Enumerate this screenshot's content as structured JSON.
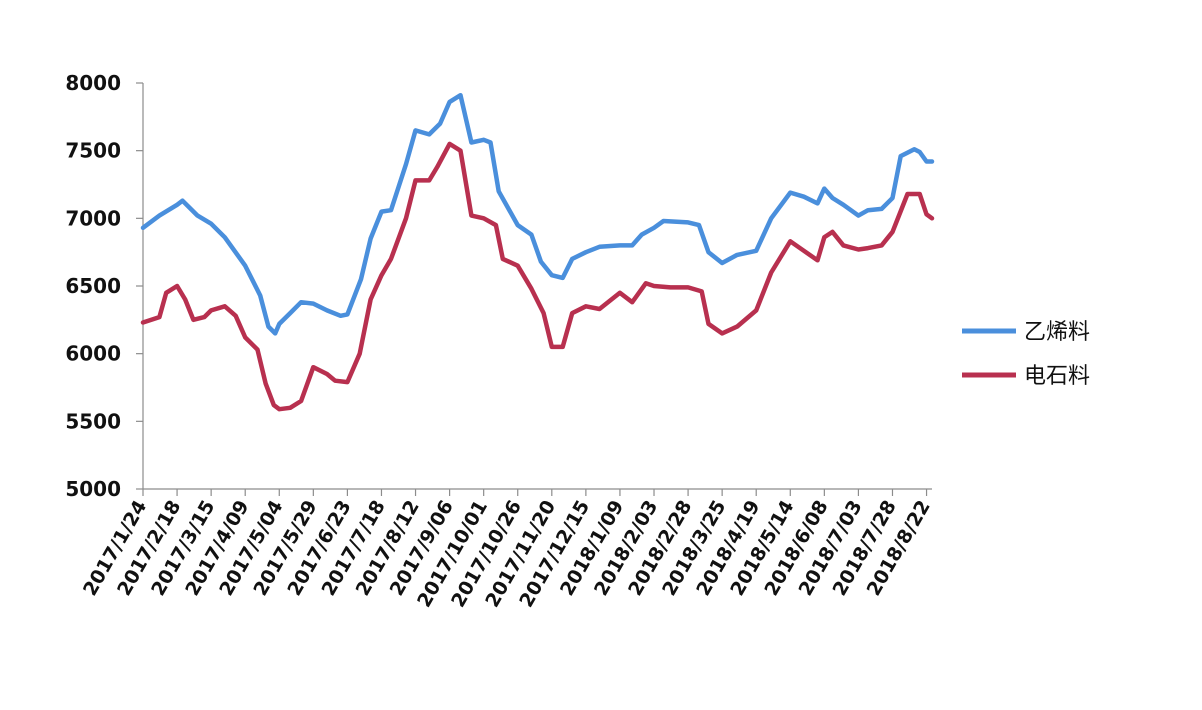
{
  "chart_data": {
    "type": "line",
    "title": "",
    "xlabel": "",
    "ylabel": "",
    "ylim": [
      5000,
      8000
    ],
    "yticks": [
      5000,
      5500,
      6000,
      6500,
      7000,
      7500,
      8000
    ],
    "x_tick_labels": [
      "2017/1/24",
      "2017/2/18",
      "2017/3/15",
      "2017/4/09",
      "2017/5/04",
      "2017/5/29",
      "2017/6/23",
      "2017/7/18",
      "2017/8/12",
      "2017/9/06",
      "2017/10/01",
      "2017/10/26",
      "2017/11/20",
      "2017/12/15",
      "2018/1/09",
      "2018/2/03",
      "2018/2/28",
      "2018/3/25",
      "2018/4/19",
      "2018/5/14",
      "2018/6/08",
      "2018/7/03",
      "2018/7/28",
      "2018/8/22"
    ],
    "grid": false,
    "legend_position": "right",
    "series": [
      {
        "name": "乙烯料",
        "color": "#4a8fdc",
        "points": [
          [
            "2017/1/24",
            6930
          ],
          [
            "2017/2/05",
            7020
          ],
          [
            "2017/2/18",
            7100
          ],
          [
            "2017/2/22",
            7130
          ],
          [
            "2017/3/05",
            7020
          ],
          [
            "2017/3/15",
            6960
          ],
          [
            "2017/3/25",
            6860
          ],
          [
            "2017/4/09",
            6650
          ],
          [
            "2017/4/20",
            6430
          ],
          [
            "2017/4/26",
            6200
          ],
          [
            "2017/5/01",
            6150
          ],
          [
            "2017/5/04",
            6220
          ],
          [
            "2017/5/12",
            6300
          ],
          [
            "2017/5/20",
            6380
          ],
          [
            "2017/5/29",
            6370
          ],
          [
            "2017/6/08",
            6320
          ],
          [
            "2017/6/18",
            6280
          ],
          [
            "2017/6/23",
            6290
          ],
          [
            "2017/7/03",
            6550
          ],
          [
            "2017/7/10",
            6850
          ],
          [
            "2017/7/18",
            7050
          ],
          [
            "2017/7/25",
            7060
          ],
          [
            "2017/8/05",
            7400
          ],
          [
            "2017/8/12",
            7650
          ],
          [
            "2017/8/22",
            7620
          ],
          [
            "2017/8/30",
            7700
          ],
          [
            "2017/9/06",
            7860
          ],
          [
            "2017/9/14",
            7910
          ],
          [
            "2017/9/22",
            7560
          ],
          [
            "2017/10/01",
            7580
          ],
          [
            "2017/10/06",
            7560
          ],
          [
            "2017/10/12",
            7200
          ],
          [
            "2017/10/26",
            6950
          ],
          [
            "2017/11/05",
            6880
          ],
          [
            "2017/11/12",
            6680
          ],
          [
            "2017/11/20",
            6580
          ],
          [
            "2017/11/28",
            6560
          ],
          [
            "2017/12/05",
            6700
          ],
          [
            "2017/12/15",
            6750
          ],
          [
            "2017/12/25",
            6790
          ],
          [
            "2018/1/09",
            6800
          ],
          [
            "2018/1/18",
            6800
          ],
          [
            "2018/1/25",
            6880
          ],
          [
            "2018/2/03",
            6930
          ],
          [
            "2018/2/10",
            6980
          ],
          [
            "2018/2/28",
            6970
          ],
          [
            "2018/3/08",
            6950
          ],
          [
            "2018/3/15",
            6750
          ],
          [
            "2018/3/25",
            6670
          ],
          [
            "2018/4/05",
            6730
          ],
          [
            "2018/4/19",
            6760
          ],
          [
            "2018/4/30",
            7000
          ],
          [
            "2018/5/14",
            7190
          ],
          [
            "2018/5/24",
            7160
          ],
          [
            "2018/6/03",
            7110
          ],
          [
            "2018/6/08",
            7220
          ],
          [
            "2018/6/14",
            7150
          ],
          [
            "2018/6/22",
            7100
          ],
          [
            "2018/7/03",
            7020
          ],
          [
            "2018/7/10",
            7060
          ],
          [
            "2018/7/20",
            7070
          ],
          [
            "2018/7/28",
            7150
          ],
          [
            "2018/8/03",
            7460
          ],
          [
            "2018/8/13",
            7510
          ],
          [
            "2018/8/17",
            7490
          ],
          [
            "2018/8/22",
            7420
          ],
          [
            "2018/8/26",
            7420
          ]
        ]
      },
      {
        "name": "电石料",
        "color": "#b8304f",
        "points": [
          [
            "2017/1/24",
            6230
          ],
          [
            "2017/2/05",
            6270
          ],
          [
            "2017/2/10",
            6450
          ],
          [
            "2017/2/18",
            6500
          ],
          [
            "2017/2/24",
            6400
          ],
          [
            "2017/3/02",
            6250
          ],
          [
            "2017/3/10",
            6270
          ],
          [
            "2017/3/15",
            6320
          ],
          [
            "2017/3/25",
            6350
          ],
          [
            "2017/4/02",
            6280
          ],
          [
            "2017/4/09",
            6120
          ],
          [
            "2017/4/18",
            6030
          ],
          [
            "2017/4/24",
            5780
          ],
          [
            "2017/4/30",
            5620
          ],
          [
            "2017/5/04",
            5590
          ],
          [
            "2017/5/12",
            5600
          ],
          [
            "2017/5/20",
            5650
          ],
          [
            "2017/5/29",
            5900
          ],
          [
            "2017/6/08",
            5850
          ],
          [
            "2017/6/14",
            5800
          ],
          [
            "2017/6/23",
            5790
          ],
          [
            "2017/7/02",
            6000
          ],
          [
            "2017/7/10",
            6400
          ],
          [
            "2017/7/18",
            6580
          ],
          [
            "2017/7/25",
            6700
          ],
          [
            "2017/8/05",
            7000
          ],
          [
            "2017/8/12",
            7280
          ],
          [
            "2017/8/22",
            7280
          ],
          [
            "2017/8/28",
            7380
          ],
          [
            "2017/9/06",
            7550
          ],
          [
            "2017/9/14",
            7500
          ],
          [
            "2017/9/22",
            7020
          ],
          [
            "2017/10/01",
            7000
          ],
          [
            "2017/10/10",
            6950
          ],
          [
            "2017/10/15",
            6700
          ],
          [
            "2017/10/26",
            6650
          ],
          [
            "2017/11/05",
            6480
          ],
          [
            "2017/11/14",
            6300
          ],
          [
            "2017/11/20",
            6050
          ],
          [
            "2017/11/28",
            6050
          ],
          [
            "2017/12/05",
            6300
          ],
          [
            "2017/12/15",
            6350
          ],
          [
            "2017/12/25",
            6330
          ],
          [
            "2018/1/09",
            6450
          ],
          [
            "2018/1/18",
            6380
          ],
          [
            "2018/1/28",
            6520
          ],
          [
            "2018/2/03",
            6500
          ],
          [
            "2018/2/15",
            6490
          ],
          [
            "2018/2/28",
            6490
          ],
          [
            "2018/3/10",
            6460
          ],
          [
            "2018/3/15",
            6220
          ],
          [
            "2018/3/25",
            6150
          ],
          [
            "2018/4/05",
            6200
          ],
          [
            "2018/4/19",
            6320
          ],
          [
            "2018/4/30",
            6600
          ],
          [
            "2018/5/14",
            6830
          ],
          [
            "2018/5/24",
            6760
          ],
          [
            "2018/6/03",
            6690
          ],
          [
            "2018/6/08",
            6860
          ],
          [
            "2018/6/14",
            6900
          ],
          [
            "2018/6/22",
            6800
          ],
          [
            "2018/7/03",
            6770
          ],
          [
            "2018/7/10",
            6780
          ],
          [
            "2018/7/20",
            6800
          ],
          [
            "2018/7/28",
            6900
          ],
          [
            "2018/8/08",
            7180
          ],
          [
            "2018/8/17",
            7180
          ],
          [
            "2018/8/22",
            7030
          ],
          [
            "2018/8/26",
            7000
          ]
        ]
      }
    ]
  }
}
